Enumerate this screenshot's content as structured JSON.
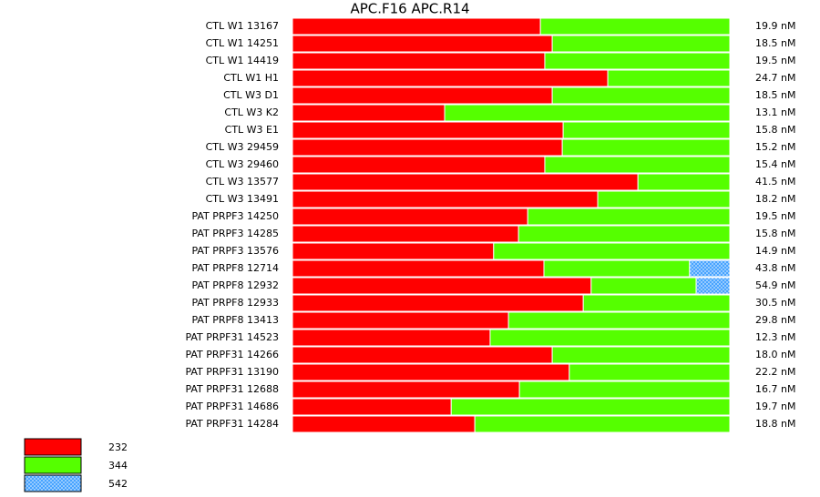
{
  "chart_data": {
    "type": "stacked-barh",
    "title": "APC.F16  APC.R14",
    "categories": [
      "CTL W1 13167",
      "CTL W1 14251",
      "CTL W1 14419",
      "CTL W1 H1",
      "CTL W3 D1",
      "CTL W3 K2",
      "CTL W3 E1",
      "CTL W3 29459",
      "CTL W3 29460",
      "CTL W3 13577",
      "CTL W3 13491",
      "PAT PRPF3 14250",
      "PAT PRPF3 14285",
      "PAT PRPF3 13576",
      "PAT PRPF8 12714",
      "PAT PRPF8 12932",
      "PAT PRPF8 12933",
      "PAT PRPF8 13413",
      "PAT PRPF31 14523",
      "PAT PRPF31 14266",
      "PAT PRPF31 13190",
      "PAT PRPF31 12688",
      "PAT PRPF31 14686",
      "PAT PRPF31 14284"
    ],
    "row_labels": [
      "19.9 nM",
      "18.5 nM",
      "19.5 nM",
      "24.7 nM",
      "18.5 nM",
      "13.1 nM",
      "15.8 nM",
      "15.2 nM",
      "15.4 nM",
      "41.5 nM",
      "18.2 nM",
      "19.5 nM",
      "15.8 nM",
      "14.9 nM",
      "43.8 nM",
      "54.9 nM",
      "30.5 nM",
      "29.8 nM",
      "12.3 nM",
      "18.0 nM",
      "22.2 nM",
      "16.7 nM",
      "19.7 nM",
      "18.8 nM"
    ],
    "series": [
      {
        "name": "232",
        "color": "#ff0000",
        "values": [
          56.7,
          59.4,
          57.7,
          72.1,
          59.4,
          34.8,
          61.9,
          61.7,
          57.7,
          79.0,
          69.8,
          53.8,
          51.7,
          46.0,
          57.5,
          68.3,
          66.5,
          49.4,
          45.2,
          59.4,
          63.3,
          51.9,
          36.3,
          41.7
        ]
      },
      {
        "name": "344",
        "color": "#55ff00",
        "values": [
          43.3,
          40.6,
          42.3,
          27.9,
          40.6,
          65.2,
          38.1,
          38.3,
          42.3,
          21.0,
          30.2,
          46.2,
          48.3,
          54.0,
          33.3,
          24.0,
          33.5,
          50.6,
          54.8,
          40.6,
          36.7,
          48.1,
          63.7,
          58.3
        ]
      },
      {
        "name": "542",
        "color": "#3399ff",
        "hatch": true,
        "values": [
          0,
          0,
          0,
          0,
          0,
          0,
          0,
          0,
          0,
          0,
          0,
          0,
          0,
          0,
          9.2,
          7.7,
          0,
          0,
          0,
          0,
          0,
          0,
          0,
          0
        ]
      }
    ],
    "xlim": [
      0,
      100
    ]
  }
}
